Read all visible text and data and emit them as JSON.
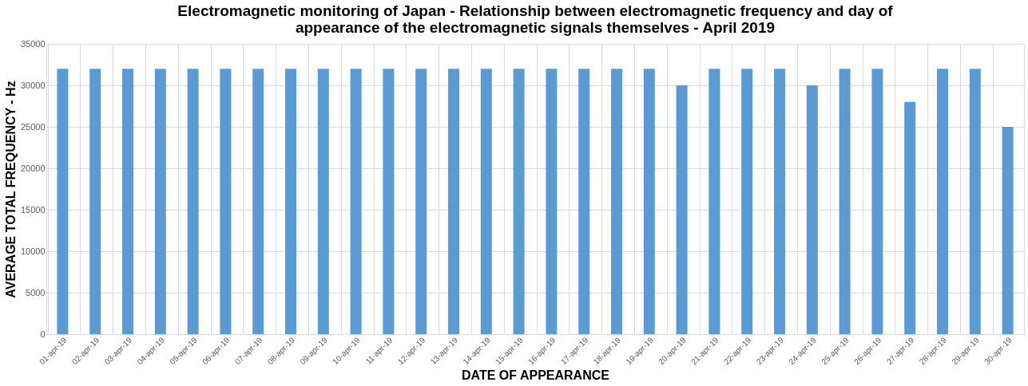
{
  "chart_data": {
    "type": "bar",
    "title": [
      "Electromagnetic monitoring of Japan - Relationship between electromagnetic frequency and day of",
      "appearance of the electromagnetic signals themselves - April 2019"
    ],
    "xlabel": "DATE OF APPEARANCE",
    "ylabel": "AVERAGE TOTAL FREQUENCY - Hz",
    "categories": [
      "01-apr-19",
      "02-apr-19",
      "03-apr-19",
      "04-apr-19",
      "05-apr-19",
      "06-apr-19",
      "07-apr-19",
      "08-apr-19",
      "09-apr-19",
      "10-apr-19",
      "11-apr-19",
      "12-apr-19",
      "13-apr-19",
      "14-apr-19",
      "15-apr-19",
      "16-apr-19",
      "17-apr-19",
      "18-apr-19",
      "19-apr-19",
      "20-apr-19",
      "21-apr-19",
      "22-apr-19",
      "23-apr-19",
      "24-apr-19",
      "25-apr-19",
      "26-apr-19",
      "27-apr-19",
      "28-apr-19",
      "29-apr-19",
      "30-apr-19"
    ],
    "values": [
      32000,
      32000,
      32000,
      32000,
      32000,
      32000,
      32000,
      32000,
      32000,
      32000,
      32000,
      32000,
      32000,
      32000,
      32000,
      32000,
      32000,
      32000,
      32000,
      30000,
      32000,
      32000,
      32000,
      30000,
      32000,
      32000,
      28000,
      32000,
      32000,
      25000
    ],
    "color": "#5b9bd5",
    "ylim": [
      0,
      35000
    ],
    "yticks": [
      0,
      5000,
      10000,
      15000,
      20000,
      25000,
      30000,
      35000
    ],
    "grid": true
  }
}
